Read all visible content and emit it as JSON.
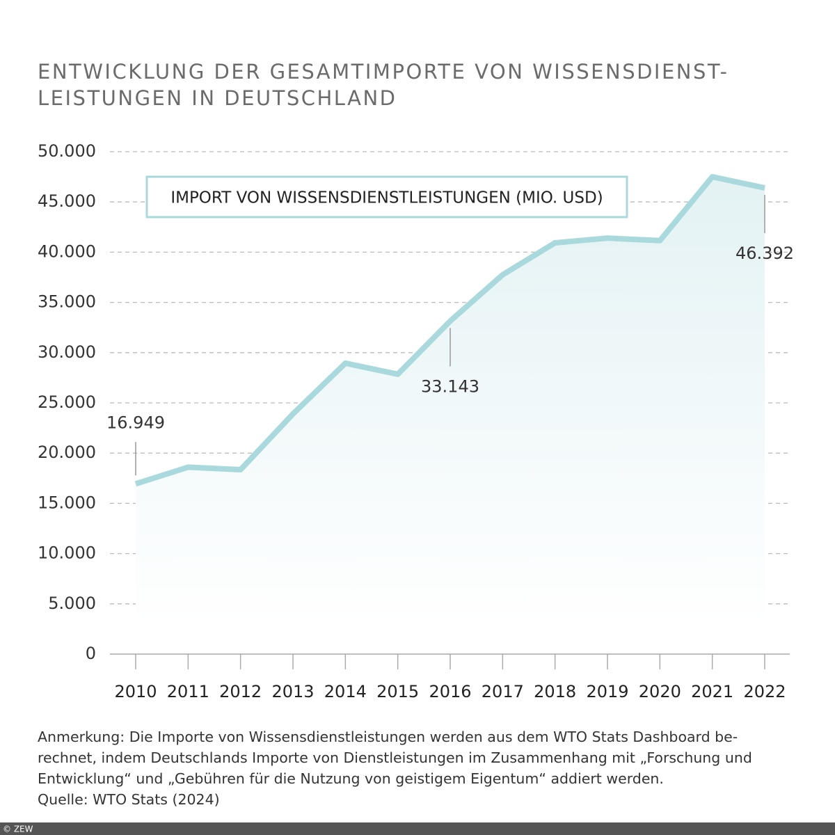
{
  "chart_data": {
    "type": "line",
    "title": [
      "ENTWICKLUNG DER GESAMTIMPORTE VON WISSENSDIENST-",
      "LEISTUNGEN IN DEUTSCHLAND"
    ],
    "categories": [
      "2010",
      "2011",
      "2012",
      "2013",
      "2014",
      "2015",
      "2016",
      "2017",
      "2018",
      "2019",
      "2020",
      "2021",
      "2022"
    ],
    "series": [
      {
        "name": "IMPORT VON WISSENSDIENSTLEISTUNGEN (MIO. USD)",
        "color": "#a9d9dd",
        "values": [
          16949,
          18600,
          18350,
          23900,
          28950,
          27850,
          33143,
          37750,
          40930,
          41400,
          41150,
          47500,
          46392
        ],
        "value_labels": [
          "16.949",
          null,
          null,
          null,
          null,
          null,
          "33.143",
          null,
          null,
          null,
          null,
          null,
          "46.392"
        ]
      }
    ],
    "ylim": [
      0,
      50000
    ],
    "yticks": [
      0,
      {
        "value": 5000,
        "label": "5.000"
      },
      {
        "value": 10000,
        "label": "10.000"
      },
      {
        "value": 15000,
        "label": "15.000"
      },
      {
        "value": 20000,
        "label": "20.000"
      },
      {
        "value": 25000,
        "label": "25.000"
      },
      {
        "value": 30000,
        "label": "30.000"
      },
      {
        "value": 35000,
        "label": "35.000"
      },
      {
        "value": 40000,
        "label": "40.000"
      },
      {
        "value": 45000,
        "label": "45.000"
      },
      {
        "value": 50000,
        "label": "50.000"
      }
    ],
    "grid": true,
    "notes": [
      "Anmerkung: Die Importe von Wissensdienstleistungen werden aus dem WTO Stats Dashboard be-",
      "rechnet, indem Deutschlands Importe von Dienstleistungen im Zusammenhang mit „Forschung und",
      "Entwicklung“ und „Gebühren für die Nutzung von geistigem Eigentum“ addiert werden.",
      "Quelle: WTO Stats (2024)"
    ],
    "credit": "© ZEW"
  }
}
